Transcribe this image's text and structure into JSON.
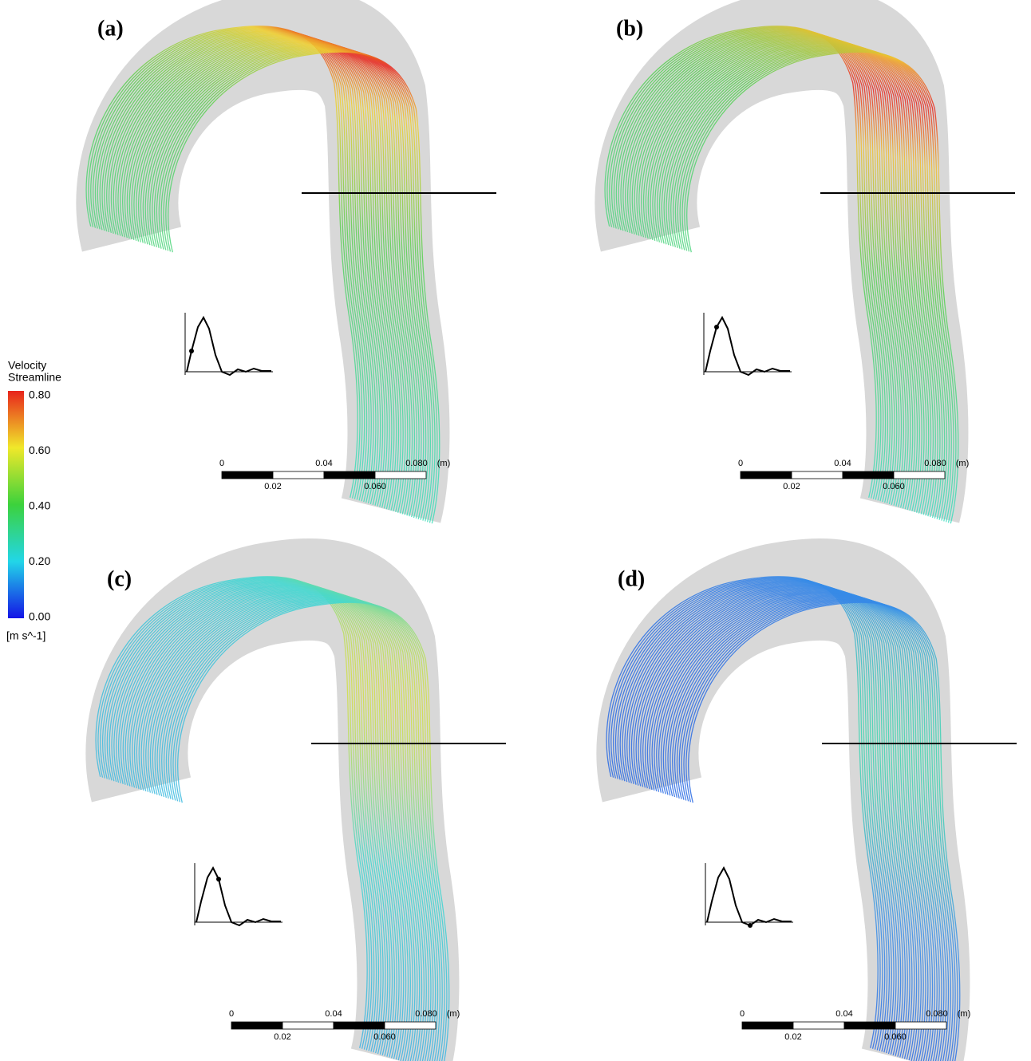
{
  "panels": [
    {
      "label": "(a)"
    },
    {
      "label": "(b)"
    },
    {
      "label": "(c)"
    },
    {
      "label": "(d)"
    }
  ],
  "legend": {
    "title_line1": "Velocity",
    "title_line2": "Streamline",
    "ticks": [
      "0.80",
      "0.60",
      "0.40",
      "0.20",
      "0.00"
    ],
    "unit": "[m s^-1]"
  },
  "scale_bar": {
    "top_labels": [
      "0",
      "0.04",
      "0.080",
      "(m)"
    ],
    "bottom_labels": [
      "0.02",
      "0.060"
    ]
  }
}
